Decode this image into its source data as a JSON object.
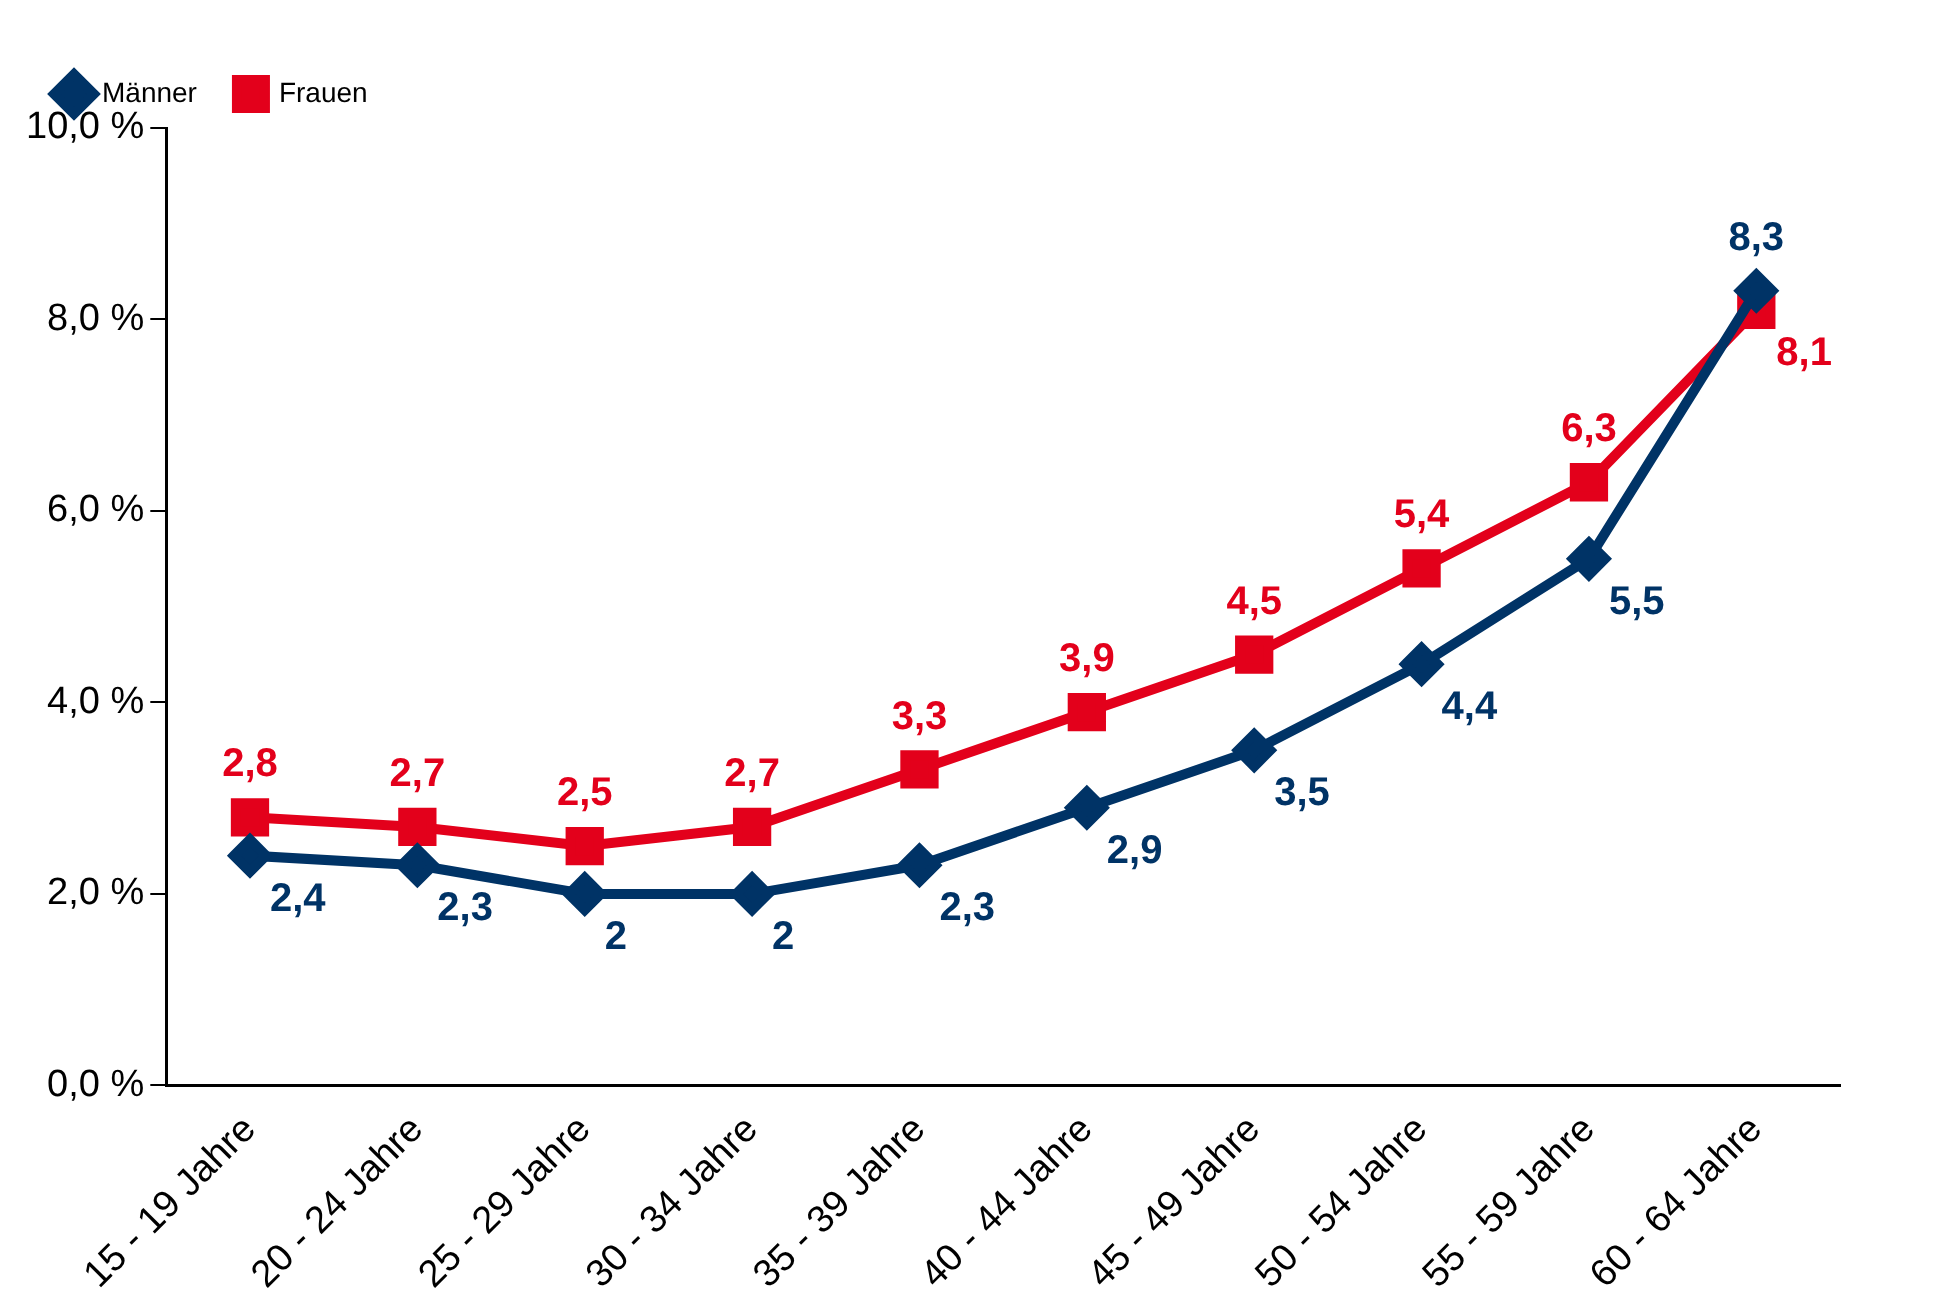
{
  "chart_data": {
    "type": "line",
    "categories": [
      "15 - 19 Jahre",
      "20 - 24 Jahre",
      "25 - 29 Jahre",
      "30 - 34 Jahre",
      "35 - 39 Jahre",
      "40 - 44 Jahre",
      "45 - 49 Jahre",
      "50 - 54 Jahre",
      "55 - 59 Jahre",
      "60 - 64 Jahre"
    ],
    "series": [
      {
        "name": "Männer",
        "color": "#003366",
        "marker": "diamond",
        "values": [
          2.4,
          2.3,
          2,
          2,
          2.3,
          2.9,
          3.5,
          4.4,
          5.5,
          8.3
        ],
        "value_labels": [
          "2,4",
          "2,3",
          "2",
          "2",
          "2,3",
          "2,9",
          "3,5",
          "4,4",
          "5,5",
          "8,3"
        ]
      },
      {
        "name": "Frauen",
        "color": "#e3001b",
        "marker": "square",
        "values": [
          2.8,
          2.7,
          2.5,
          2.7,
          3.3,
          3.9,
          4.5,
          5.4,
          6.3,
          8.1
        ],
        "value_labels": [
          "2,8",
          "2,7",
          "2,5",
          "2,7",
          "3,3",
          "3,9",
          "4,5",
          "5,4",
          "6,3",
          "8,1"
        ]
      }
    ],
    "ylim": [
      0,
      10
    ],
    "yticks": [
      {
        "value": 0,
        "label": "0,0 %"
      },
      {
        "value": 2,
        "label": "2,0 %"
      },
      {
        "value": 4,
        "label": "4,0 %"
      },
      {
        "value": 6,
        "label": "6,0 %"
      },
      {
        "value": 8,
        "label": "8,0 %"
      },
      {
        "value": 10,
        "label": "10,0 %"
      }
    ],
    "grid": false,
    "legend": "top left",
    "line_style": "solid"
  }
}
